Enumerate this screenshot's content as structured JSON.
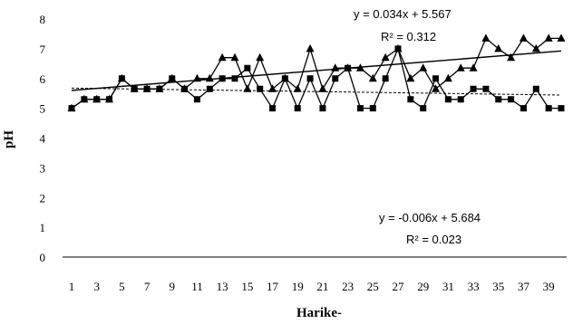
{
  "chart_data": {
    "type": "line",
    "title": "",
    "xlabel": "Harike-",
    "ylabel": "pH",
    "ylim": [
      0,
      8
    ],
    "xlim": [
      1,
      40
    ],
    "yticks": [
      0,
      1,
      2,
      3,
      4,
      5,
      6,
      7,
      8
    ],
    "xticks": [
      1,
      3,
      5,
      7,
      9,
      11,
      13,
      15,
      17,
      19,
      21,
      23,
      25,
      27,
      29,
      31,
      33,
      35,
      37,
      39
    ],
    "grid": false,
    "legend": "none",
    "x": [
      1,
      2,
      3,
      4,
      5,
      6,
      7,
      8,
      9,
      10,
      11,
      12,
      13,
      14,
      15,
      16,
      17,
      18,
      19,
      20,
      21,
      22,
      23,
      24,
      25,
      26,
      27,
      28,
      29,
      30,
      31,
      32,
      33,
      34,
      35,
      36,
      37,
      38,
      39,
      40
    ],
    "series": [
      {
        "marker": "square",
        "color": "#000000",
        "values": [
          5.0,
          5.3,
          5.3,
          5.3,
          6.0,
          5.65,
          5.65,
          5.65,
          6.0,
          5.65,
          5.3,
          5.65,
          6.0,
          6.0,
          6.35,
          5.65,
          5.0,
          6.0,
          5.0,
          6.0,
          5.0,
          6.0,
          6.35,
          5.0,
          5.0,
          6.0,
          7.0,
          5.3,
          5.0,
          6.0,
          5.3,
          5.3,
          5.65,
          5.65,
          5.3,
          5.3,
          5.0,
          5.65,
          5.0,
          5.0
        ]
      },
      {
        "marker": "triangle",
        "color": "#000000",
        "values": [
          5.0,
          5.3,
          5.3,
          5.3,
          6.0,
          5.65,
          5.65,
          5.65,
          6.0,
          5.65,
          6.0,
          6.0,
          6.7,
          6.7,
          5.65,
          6.7,
          5.65,
          6.0,
          5.65,
          7.0,
          5.65,
          6.35,
          6.35,
          6.35,
          6.0,
          6.7,
          7.0,
          6.0,
          6.35,
          5.65,
          6.0,
          6.35,
          6.35,
          7.35,
          7.0,
          6.7,
          7.35,
          7.0,
          7.35,
          7.35
        ]
      }
    ],
    "trendlines": [
      {
        "series": 1,
        "style": "solid",
        "slope": 0.034,
        "intercept": 5.567,
        "equation": "y = 0.034x + 5.567",
        "r2_label": "R² = 0.312"
      },
      {
        "series": 0,
        "style": "dashed",
        "slope": -0.006,
        "intercept": 5.684,
        "equation": "y = -0.006x + 5.684",
        "r2_label": "R² = 0.023"
      }
    ]
  }
}
